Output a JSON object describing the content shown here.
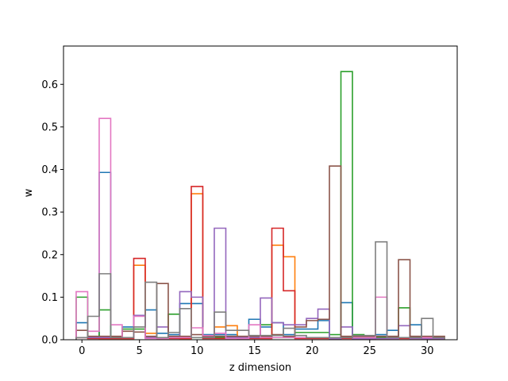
{
  "chart_data": {
    "type": "bar",
    "style": "step-outline",
    "xlabel": "z dimension",
    "ylabel": "w",
    "xlim": [
      -1.6,
      32.6
    ],
    "ylim": [
      0,
      0.69
    ],
    "xticks": [
      0,
      5,
      10,
      15,
      20,
      25,
      30
    ],
    "yticks": [
      0.0,
      0.1,
      0.2,
      0.3,
      0.4,
      0.5,
      0.6
    ],
    "grid": false,
    "series": [
      {
        "color": "#1f77b4",
        "values": [
          0.04,
          0.005,
          0.393,
          0.005,
          0.03,
          0.057,
          0.07,
          0.015,
          0.012,
          0.085,
          0.085,
          0.012,
          0.012,
          0.012,
          0.003,
          0.048,
          0.03,
          0.04,
          0.012,
          0.025,
          0.025,
          0.045,
          0.003,
          0.087,
          0.003,
          0.003,
          0.012,
          0.022,
          0.005,
          0.035,
          0.003,
          0.003
        ]
      },
      {
        "color": "#ff7f0e",
        "values": [
          0.005,
          0.005,
          0.003,
          0.003,
          0.003,
          0.175,
          0.015,
          0.005,
          0.005,
          0.003,
          0.343,
          0.005,
          0.03,
          0.033,
          0.005,
          0.005,
          0.005,
          0.222,
          0.195,
          0.005,
          0.005,
          0.005,
          0.005,
          0.005,
          0.005,
          0.005,
          0.005,
          0.005,
          0.005,
          0.005,
          0.005,
          0.005
        ]
      },
      {
        "color": "#2ca02c",
        "values": [
          0.1,
          0.005,
          0.07,
          0.005,
          0.025,
          0.025,
          0.005,
          0.005,
          0.06,
          0.005,
          0.005,
          0.005,
          0.005,
          0.005,
          0.005,
          0.005,
          0.035,
          0.005,
          0.005,
          0.017,
          0.017,
          0.017,
          0.012,
          0.63,
          0.012,
          0.005,
          0.005,
          0.005,
          0.075,
          0.005,
          0.005,
          0.005
        ]
      },
      {
        "color": "#d62728",
        "values": [
          0.005,
          0.003,
          0.003,
          0.003,
          0.003,
          0.191,
          0.005,
          0.003,
          0.003,
          0.003,
          0.36,
          0.003,
          0.003,
          0.003,
          0.003,
          0.003,
          0.003,
          0.262,
          0.115,
          0.003,
          0.003,
          0.003,
          0.003,
          0.003,
          0.003,
          0.003,
          0.003,
          0.003,
          0.003,
          0.003,
          0.003,
          0.003
        ]
      },
      {
        "color": "#9467bd",
        "values": [
          0.005,
          0.005,
          0.005,
          0.005,
          0.005,
          0.057,
          0.005,
          0.03,
          0.005,
          0.113,
          0.1,
          0.005,
          0.262,
          0.005,
          0.005,
          0.005,
          0.098,
          0.04,
          0.035,
          0.035,
          0.05,
          0.072,
          0.003,
          0.03,
          0.003,
          0.003,
          0.003,
          0.003,
          0.033,
          0.003,
          0.003,
          0.003
        ]
      },
      {
        "color": "#8c564b",
        "values": [
          0.022,
          0.008,
          0.008,
          0.008,
          0.02,
          0.018,
          0.008,
          0.132,
          0.008,
          0.008,
          0.012,
          0.008,
          0.008,
          0.008,
          0.008,
          0.008,
          0.008,
          0.012,
          0.008,
          0.03,
          0.045,
          0.048,
          0.408,
          0.008,
          0.008,
          0.008,
          0.008,
          0.008,
          0.188,
          0.008,
          0.008,
          0.008
        ]
      },
      {
        "color": "#e377c2",
        "values": [
          0.113,
          0.02,
          0.52,
          0.035,
          0.005,
          0.055,
          0.003,
          0.003,
          0.005,
          0.005,
          0.028,
          0.01,
          0.015,
          0.003,
          0.003,
          0.035,
          0.005,
          0.005,
          0.005,
          0.005,
          0.005,
          0.005,
          0.005,
          0.005,
          0.005,
          0.005,
          0.1,
          0.005,
          0.005,
          0.005,
          0.005,
          0.005
        ]
      },
      {
        "color": "#7f7f7f",
        "values": [
          0.005,
          0.055,
          0.155,
          0.005,
          0.005,
          0.03,
          0.135,
          0.005,
          0.017,
          0.073,
          0.005,
          0.005,
          0.065,
          0.022,
          0.022,
          0.01,
          0.01,
          0.01,
          0.027,
          0.01,
          0.005,
          0.005,
          0.005,
          0.005,
          0.01,
          0.01,
          0.23,
          0.005,
          0.005,
          0.005,
          0.05,
          0.005
        ]
      }
    ]
  }
}
